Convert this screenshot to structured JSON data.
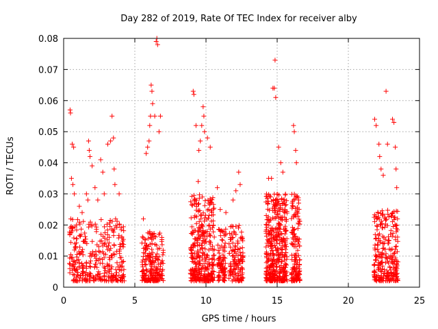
{
  "chart_data": {
    "type": "scatter",
    "title": "Day 282 of 2019, Rate Of TEC Index for receiver alby",
    "xlabel": "GPS time / hours",
    "ylabel": "ROTI / TECUs",
    "xlim": [
      0,
      25
    ],
    "ylim": [
      0,
      0.08
    ],
    "xticks": [
      0,
      5,
      10,
      15,
      20,
      25
    ],
    "xtick_labels": [
      "0",
      "5",
      "10",
      "15",
      "20",
      "25"
    ],
    "yticks": [
      0,
      0.01,
      0.02,
      0.03,
      0.04,
      0.05,
      0.06,
      0.07,
      0.08
    ],
    "ytick_labels": [
      "0",
      "0.01",
      "0.02",
      "0.03",
      "0.04",
      "0.05",
      "0.06",
      "0.07",
      "0.08"
    ],
    "grid": true,
    "marker": "+",
    "colors": {
      "points": "#ff0000",
      "grid": "#a0a0a0",
      "axes": "#000000"
    },
    "series": [
      {
        "name": "ROTI",
        "points": [
          [
            0.45,
            0.057
          ],
          [
            0.48,
            0.056
          ],
          [
            0.6,
            0.046
          ],
          [
            0.7,
            0.045
          ],
          [
            0.55,
            0.035
          ],
          [
            0.65,
            0.033
          ],
          [
            0.75,
            0.03
          ],
          [
            0.5,
            0.022
          ],
          [
            0.9,
            0.02
          ],
          [
            1.1,
            0.026
          ],
          [
            1.3,
            0.024
          ],
          [
            1.6,
            0.03
          ],
          [
            1.7,
            0.028
          ],
          [
            1.75,
            0.047
          ],
          [
            1.8,
            0.044
          ],
          [
            1.85,
            0.042
          ],
          [
            2.0,
            0.039
          ],
          [
            2.2,
            0.032
          ],
          [
            2.4,
            0.028
          ],
          [
            2.6,
            0.041
          ],
          [
            2.75,
            0.037
          ],
          [
            2.85,
            0.03
          ],
          [
            3.1,
            0.046
          ],
          [
            3.3,
            0.047
          ],
          [
            3.4,
            0.055
          ],
          [
            3.5,
            0.048
          ],
          [
            3.55,
            0.038
          ],
          [
            3.6,
            0.033
          ],
          [
            3.65,
            0.022
          ],
          [
            3.9,
            0.03
          ],
          [
            4.1,
            0.014
          ],
          [
            5.6,
            0.022
          ],
          [
            5.8,
            0.043
          ],
          [
            5.9,
            0.045
          ],
          [
            6.0,
            0.047
          ],
          [
            6.05,
            0.052
          ],
          [
            6.1,
            0.055
          ],
          [
            6.15,
            0.065
          ],
          [
            6.2,
            0.063
          ],
          [
            6.25,
            0.059
          ],
          [
            6.4,
            0.055
          ],
          [
            6.5,
            0.079
          ],
          [
            6.55,
            0.08
          ],
          [
            6.6,
            0.078
          ],
          [
            6.7,
            0.05
          ],
          [
            6.8,
            0.055
          ],
          [
            6.9,
            0.016
          ],
          [
            9.1,
            0.063
          ],
          [
            9.15,
            0.062
          ],
          [
            9.3,
            0.052
          ],
          [
            9.5,
            0.044
          ],
          [
            9.6,
            0.047
          ],
          [
            9.7,
            0.052
          ],
          [
            9.8,
            0.058
          ],
          [
            9.85,
            0.055
          ],
          [
            9.9,
            0.05
          ],
          [
            10.1,
            0.048
          ],
          [
            10.3,
            0.045
          ],
          [
            9.45,
            0.034
          ],
          [
            10.8,
            0.032
          ],
          [
            11.0,
            0.025
          ],
          [
            11.4,
            0.024
          ],
          [
            11.9,
            0.028
          ],
          [
            12.1,
            0.031
          ],
          [
            12.3,
            0.037
          ],
          [
            12.4,
            0.033
          ],
          [
            14.4,
            0.035
          ],
          [
            14.6,
            0.035
          ],
          [
            14.7,
            0.064
          ],
          [
            14.8,
            0.064
          ],
          [
            14.85,
            0.073
          ],
          [
            14.9,
            0.061
          ],
          [
            15.1,
            0.045
          ],
          [
            15.25,
            0.04
          ],
          [
            15.4,
            0.037
          ],
          [
            16.15,
            0.052
          ],
          [
            16.2,
            0.05
          ],
          [
            16.3,
            0.044
          ],
          [
            16.35,
            0.04
          ],
          [
            16.5,
            0.028
          ],
          [
            21.85,
            0.054
          ],
          [
            21.95,
            0.052
          ],
          [
            22.15,
            0.046
          ],
          [
            22.2,
            0.042
          ],
          [
            22.3,
            0.038
          ],
          [
            22.45,
            0.036
          ],
          [
            22.65,
            0.063
          ],
          [
            22.75,
            0.046
          ],
          [
            23.1,
            0.054
          ],
          [
            23.2,
            0.053
          ],
          [
            23.3,
            0.045
          ],
          [
            23.35,
            0.038
          ],
          [
            23.4,
            0.032
          ],
          [
            23.45,
            0.022
          ]
        ],
        "clusters": [
          {
            "x_range": [
              0.4,
              4.3
            ],
            "y_range": [
              0.002,
              0.022
            ],
            "density": 340
          },
          {
            "x_range": [
              5.5,
              7.0
            ],
            "y_range": [
              0.002,
              0.018
            ],
            "density": 200
          },
          {
            "x_range": [
              8.9,
              10.6
            ],
            "y_range": [
              0.002,
              0.03
            ],
            "density": 340
          },
          {
            "x_range": [
              10.8,
              11.4
            ],
            "y_range": [
              0.002,
              0.02
            ],
            "density": 90
          },
          {
            "x_range": [
              11.6,
              12.6
            ],
            "y_range": [
              0.002,
              0.02
            ],
            "density": 130
          },
          {
            "x_range": [
              14.2,
              15.7
            ],
            "y_range": [
              0.002,
              0.03
            ],
            "density": 420
          },
          {
            "x_range": [
              16.0,
              16.6
            ],
            "y_range": [
              0.002,
              0.03
            ],
            "density": 150
          },
          {
            "x_range": [
              21.8,
              23.5
            ],
            "y_range": [
              0.002,
              0.025
            ],
            "density": 260
          }
        ]
      }
    ]
  }
}
